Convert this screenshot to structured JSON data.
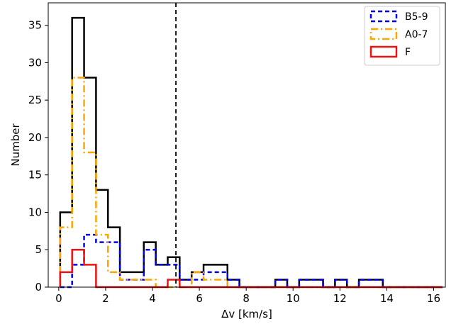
{
  "chart_data": {
    "type": "step-histogram",
    "xlabel": "Δv [km/s]",
    "ylabel": "Number",
    "xlim": [
      -0.45,
      16.5
    ],
    "ylim": [
      0,
      38
    ],
    "xticks": [
      0,
      2,
      4,
      6,
      8,
      10,
      12,
      14,
      16
    ],
    "yticks": [
      0,
      5,
      10,
      15,
      20,
      25,
      30,
      35
    ],
    "bin_edges": [
      0.06,
      0.57,
      1.08,
      1.59,
      2.1,
      2.61,
      3.12,
      3.63,
      4.14,
      4.65,
      5.16,
      5.67,
      6.18,
      6.69,
      7.2,
      7.71,
      8.22,
      8.73,
      9.24,
      9.75,
      10.26,
      10.77,
      11.28,
      11.79,
      12.3,
      12.81,
      13.32,
      13.83,
      14.34,
      14.85,
      15.36,
      15.87,
      16.38
    ],
    "vline": {
      "x": 5.0,
      "style": "dashed",
      "color": "#000000"
    },
    "legend_position": "top-right",
    "series": [
      {
        "name": "",
        "role": "all",
        "color": "#000000",
        "dash": "",
        "counts": [
          10,
          36,
          28,
          13,
          8,
          2,
          2,
          6,
          3,
          4,
          1,
          2,
          3,
          3,
          1,
          0,
          0,
          0,
          1,
          0,
          1,
          1,
          0,
          1,
          0,
          1,
          1,
          0,
          0,
          0,
          0,
          0
        ]
      },
      {
        "name": "B5-9",
        "role": "legend",
        "color": "#0000ee",
        "dash": "6,4",
        "counts": [
          0,
          3,
          7,
          6,
          6,
          1,
          1,
          5,
          3,
          3,
          1,
          1,
          2,
          2,
          1,
          0,
          0,
          0,
          1,
          0,
          1,
          1,
          0,
          1,
          0,
          1,
          1,
          0,
          0,
          0,
          0,
          0
        ]
      },
      {
        "name": "A0-7",
        "role": "legend",
        "color": "#ffa500",
        "dash": "10,4,2,4",
        "counts": [
          8,
          28,
          18,
          7,
          2,
          1,
          1,
          1,
          0,
          0,
          0,
          2,
          1,
          1,
          0,
          0,
          0,
          0,
          0,
          0,
          0,
          0,
          0,
          0,
          0,
          0,
          0,
          0,
          0,
          0,
          0,
          0
        ]
      },
      {
        "name": "F",
        "role": "legend",
        "color": "#ee1111",
        "dash": "",
        "counts": [
          2,
          5,
          3,
          0,
          0,
          0,
          0,
          0,
          0,
          1,
          0,
          0,
          0,
          0,
          0,
          0,
          0,
          0,
          0,
          0,
          0,
          0,
          0,
          0,
          0,
          0,
          0,
          0,
          0,
          0,
          0,
          0
        ]
      }
    ]
  }
}
